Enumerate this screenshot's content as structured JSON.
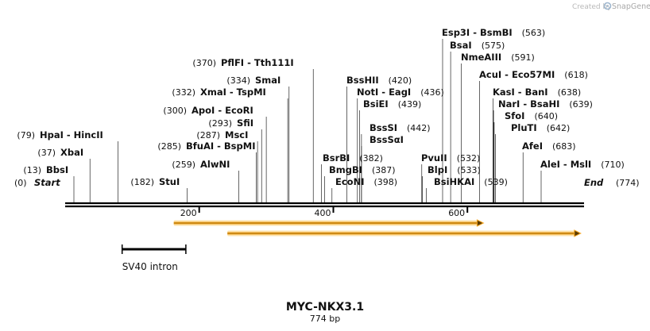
{
  "branding": {
    "created_by": "Created by",
    "app_name": "SnapGene",
    "logo_icon": "snapgene-swirl-icon"
  },
  "map": {
    "title": "MYC-NKX3.1",
    "length_label": "774 bp",
    "length": 774,
    "start_label": "Start",
    "start_pos": "(0)",
    "end_label": "End",
    "end_pos": "(774)"
  },
  "axis": {
    "ticks": [
      {
        "value": 200,
        "label": "200"
      },
      {
        "value": 400,
        "label": "400"
      },
      {
        "value": 600,
        "label": "600"
      }
    ]
  },
  "enzymes": [
    {
      "site": 13,
      "name": "BbsI",
      "pos": "(13)",
      "side": "left"
    },
    {
      "site": 37,
      "name": "XbaI",
      "pos": "(37)",
      "side": "left"
    },
    {
      "site": 79,
      "name": "HpaI  - HincII",
      "pos": "(79)",
      "side": "left"
    },
    {
      "site": 182,
      "name": "StuI",
      "pos": "(182)",
      "side": "left"
    },
    {
      "site": 259,
      "name": "AlwNI",
      "pos": "(259)",
      "side": "left"
    },
    {
      "site": 285,
      "name": "BfuAI  - BspMI",
      "pos": "(285)",
      "side": "left"
    },
    {
      "site": 287,
      "name": "MscI",
      "pos": "(287)",
      "side": "left"
    },
    {
      "site": 293,
      "name": "SfiI",
      "pos": "(293)",
      "side": "left"
    },
    {
      "site": 300,
      "name": "ApoI  - EcoRI",
      "pos": "(300)",
      "side": "left"
    },
    {
      "site": 332,
      "name": "XmaI  - TspMI",
      "pos": "(332)",
      "side": "left"
    },
    {
      "site": 334,
      "name": "SmaI",
      "pos": "(334)",
      "side": "left"
    },
    {
      "site": 370,
      "name": "PflFI  - Tth111I",
      "pos": "(370)",
      "side": "left"
    },
    {
      "site": 382,
      "name": "BsrBI",
      "pos": "(382)",
      "side": "right"
    },
    {
      "site": 387,
      "name": "BmgBI",
      "pos": "(387)",
      "side": "right"
    },
    {
      "site": 398,
      "name": "EcoNI",
      "pos": "(398)",
      "side": "right"
    },
    {
      "site": 420,
      "name": "BssHII",
      "pos": "(420)",
      "side": "right"
    },
    {
      "site": 436,
      "name": "NotI  - EagI",
      "pos": "(436)",
      "side": "right"
    },
    {
      "site": 439,
      "name": "BsiEI",
      "pos": "(439)",
      "side": "right"
    },
    {
      "site": 442,
      "name": "BssSI",
      "pos": "(442)",
      "side": "right"
    },
    {
      "site": 442,
      "name": "BssSαI",
      "pos": "",
      "side": "right"
    },
    {
      "site": 532,
      "name": "PvuII",
      "pos": "(532)",
      "side": "right"
    },
    {
      "site": 533,
      "name": "BlpI",
      "pos": "(533)",
      "side": "right"
    },
    {
      "site": 539,
      "name": "BsiHKAI",
      "pos": "(539)",
      "side": "right"
    },
    {
      "site": 563,
      "name": "Esp3I  - BsmBI",
      "pos": "(563)",
      "side": "right"
    },
    {
      "site": 575,
      "name": "BsaI",
      "pos": "(575)",
      "side": "right"
    },
    {
      "site": 591,
      "name": "NmeAIII",
      "pos": "(591)",
      "side": "right"
    },
    {
      "site": 618,
      "name": "AcuI  - Eco57MI",
      "pos": "(618)",
      "side": "right"
    },
    {
      "site": 638,
      "name": "KasI  - BanI",
      "pos": "(638)",
      "side": "right"
    },
    {
      "site": 639,
      "name": "NarI  - BsaHI",
      "pos": "(639)",
      "side": "right"
    },
    {
      "site": 640,
      "name": "SfoI",
      "pos": "(640)",
      "side": "right"
    },
    {
      "site": 642,
      "name": "PluTI",
      "pos": "(642)",
      "side": "right"
    },
    {
      "site": 683,
      "name": "AfeI",
      "pos": "(683)",
      "side": "right"
    },
    {
      "site": 710,
      "name": "AleI  - MslI",
      "pos": "(710)",
      "side": "right"
    }
  ],
  "features": [
    {
      "name": "orf-arrow-1",
      "type": "arrow",
      "start": 162,
      "end": 624,
      "color": "#f5a623"
    },
    {
      "name": "orf-arrow-2",
      "type": "arrow",
      "start": 242,
      "end": 769,
      "color": "#f5a623"
    },
    {
      "name": "sv40-intron",
      "type": "bar",
      "start": 85,
      "end": 180,
      "label": "SV40 intron",
      "color": "#000000"
    }
  ]
}
